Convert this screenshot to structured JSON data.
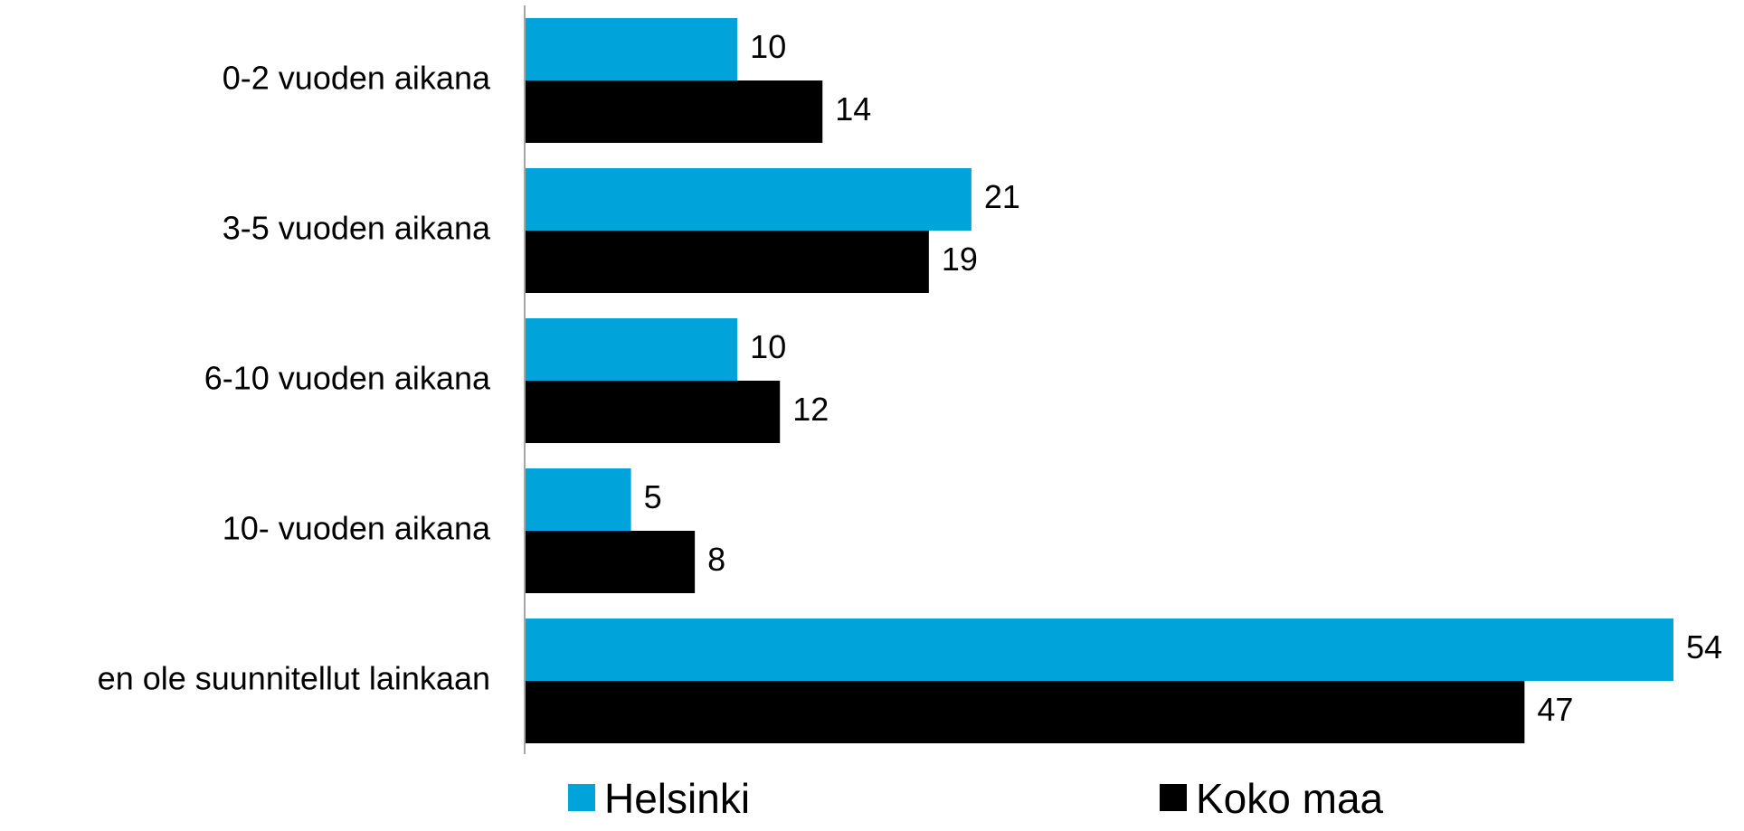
{
  "chart_data": {
    "type": "bar",
    "orientation": "horizontal",
    "categories": [
      "0-2 vuoden aikana",
      "3-5 vuoden aikana",
      "6-10 vuoden aikana",
      "10- vuoden aikana",
      "en ole suunnitellut  lainkaan"
    ],
    "series": [
      {
        "name": "Helsinki",
        "color": "#00A3DA",
        "values": [
          10,
          21,
          10,
          5,
          54
        ]
      },
      {
        "name": "Koko maa",
        "color": "#000000",
        "values": [
          14,
          19,
          12,
          8,
          47
        ]
      }
    ],
    "xlim": [
      0,
      54
    ],
    "data_labels": true,
    "grid": false,
    "legend_position": "bottom"
  }
}
